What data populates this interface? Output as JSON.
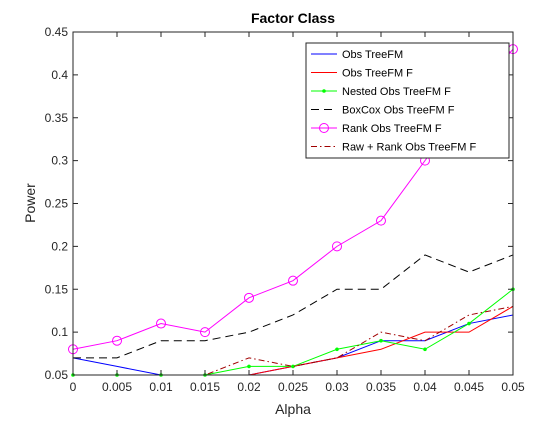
{
  "chart_data": {
    "type": "line",
    "title": "Factor Class",
    "xlabel": "Alpha",
    "ylabel": "Power",
    "xlim": [
      0,
      0.05
    ],
    "ylim": [
      0.05,
      0.45
    ],
    "grid": false,
    "legend_position": "top-right",
    "x": [
      0,
      0.005,
      0.01,
      0.015,
      0.02,
      0.025,
      0.03,
      0.035,
      0.04,
      0.045,
      0.05
    ],
    "xticks": [
      "0",
      "0.005",
      "0.01",
      "0.015",
      "0.02",
      "0.025",
      "0.03",
      "0.035",
      "0.04",
      "0.045",
      "0.05"
    ],
    "yticks": [
      "0.05",
      "0.1",
      "0.15",
      "0.2",
      "0.25",
      "0.3",
      "0.35",
      "0.4",
      "0.45"
    ],
    "ytick_values": [
      0.05,
      0.1,
      0.15,
      0.2,
      0.25,
      0.3,
      0.35,
      0.4,
      0.45
    ],
    "series": [
      {
        "name": "Obs TreeFM",
        "color": "#0000ff",
        "dash": "",
        "marker": "none",
        "values": [
          0.07,
          0.06,
          0.05,
          0.05,
          0.05,
          0.06,
          0.07,
          0.09,
          0.09,
          0.11,
          0.12
        ]
      },
      {
        "name": "Obs TreeFM F",
        "color": "#ff0000",
        "dash": "",
        "marker": "none",
        "values": [
          0.05,
          0.05,
          0.05,
          0.05,
          0.05,
          0.06,
          0.07,
          0.08,
          0.1,
          0.1,
          0.13
        ]
      },
      {
        "name": "Nested Obs TreeFM F",
        "color": "#00ff00",
        "dash": "",
        "marker": "dot",
        "values": [
          0.05,
          0.05,
          0.05,
          0.05,
          0.06,
          0.06,
          0.08,
          0.09,
          0.08,
          0.11,
          0.15
        ]
      },
      {
        "name": "BoxCox Obs TreeFM F",
        "color": "#000000",
        "dash": "8 5",
        "marker": "none",
        "values": [
          0.07,
          0.07,
          0.09,
          0.09,
          0.1,
          0.12,
          0.15,
          0.15,
          0.19,
          0.17,
          0.19
        ]
      },
      {
        "name": "Rank Obs TreeFM F",
        "color": "#ff00ff",
        "dash": "",
        "marker": "circle",
        "values": [
          0.08,
          0.09,
          0.11,
          0.1,
          0.14,
          0.16,
          0.2,
          0.23,
          0.3,
          0.37,
          0.43
        ]
      },
      {
        "name": "Raw + Rank Obs TreeFM F",
        "color": "#a00000",
        "dash": "6 3 1.5 3",
        "marker": "none",
        "values": [
          0.05,
          0.05,
          0.05,
          0.05,
          0.07,
          0.06,
          0.07,
          0.1,
          0.09,
          0.12,
          0.13
        ]
      }
    ]
  }
}
